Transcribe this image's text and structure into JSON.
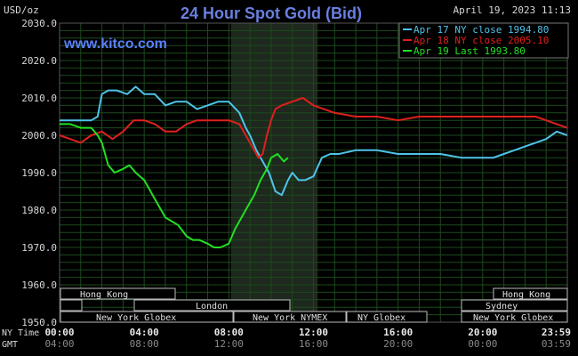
{
  "header": {
    "ylabel": "USD/oz",
    "title": "24 Hour Spot Gold (Bid)",
    "date": "April 19, 2023 11:13",
    "watermark": "www.kitco.com"
  },
  "legend": {
    "items": [
      {
        "label": "Apr 17 NY close 1994.80",
        "color": "#4fc3e8"
      },
      {
        "label": "Apr 18 NY close 2005.10",
        "color": "#e0201c"
      },
      {
        "label": "Apr 19 Last 1993.80",
        "color": "#22e022"
      }
    ]
  },
  "sessions": {
    "hong_kong_left": "Hong Kong",
    "london": "London",
    "new_york_globex_left": "New York Globex",
    "new_york_nymex": "New York NYMEX",
    "ny_globex": "NY Globex",
    "new_york_globex_right": "New York Globex",
    "sydney": "Sydney",
    "hong_kong_right": "Hong Kong"
  },
  "footer": {
    "ny_time_label": "NY Time",
    "gmt_label": "GMT"
  },
  "colors": {
    "background": "#000000",
    "grid": "#1c4a1c",
    "title": "#6a7fe0",
    "watermark": "#5a80ff",
    "axis_text": "#d8d8d8",
    "shade": "#1e281e",
    "apr17": "#4fc3e8",
    "apr18": "#e0201c",
    "apr19": "#22e022"
  },
  "chart_data": {
    "type": "line",
    "title": "24 Hour Spot Gold (Bid)",
    "ylabel": "USD/oz",
    "xlabel": "",
    "ylim": [
      1950,
      2030
    ],
    "xlim_hours": [
      0,
      24
    ],
    "y_ticks": [
      "1950.0",
      "1960.0",
      "1970.0",
      "1980.0",
      "1990.0",
      "2000.0",
      "2010.0",
      "2020.0",
      "2030.0"
    ],
    "x_ticks_ny": [
      "00:00",
      "04:00",
      "08:00",
      "12:00",
      "16:00",
      "20:00",
      "23:59"
    ],
    "x_ticks_gmt": [
      "04:00",
      "08:00",
      "12:00",
      "16:00",
      "20:00",
      "00:00",
      "03:59"
    ],
    "grid": true,
    "legend_position": "top-right",
    "series": [
      {
        "name": "Apr 17 NY close 1994.80",
        "x": [
          0,
          0.5,
          1,
          1.5,
          1.8,
          2.0,
          2.3,
          2.7,
          3.2,
          3.6,
          4.0,
          4.5,
          5.0,
          5.5,
          6.0,
          6.5,
          7.0,
          7.5,
          8.0,
          8.5,
          8.8,
          9.0,
          9.3,
          9.6,
          9.9,
          10.2,
          10.5,
          10.8,
          11.0,
          11.3,
          11.6,
          12.0,
          12.4,
          12.8,
          13.2,
          14.0,
          15.0,
          16.0,
          17.0,
          18.0,
          19.0,
          20.0,
          20.5,
          21.0,
          21.5,
          22.0,
          22.5,
          23.0,
          23.5,
          23.99
        ],
        "values": [
          2004,
          2004,
          2004,
          2004,
          2005,
          2011,
          2012,
          2012,
          2011,
          2013,
          2011,
          2011,
          2008,
          2009,
          2009,
          2007,
          2008,
          2009,
          2009,
          2006,
          2002,
          2000,
          1996,
          1993,
          1990,
          1985,
          1984,
          1988,
          1990,
          1988,
          1988,
          1989,
          1994,
          1995,
          1995,
          1996,
          1996,
          1995,
          1995,
          1995,
          1994,
          1994,
          1994,
          1995,
          1996,
          1997,
          1998,
          1999,
          2001,
          2000
        ]
      },
      {
        "name": "Apr 18 NY close 2005.10",
        "x": [
          0,
          0.5,
          1.0,
          1.5,
          2.0,
          2.5,
          3.0,
          3.5,
          4.0,
          4.5,
          5.0,
          5.5,
          6.0,
          6.5,
          7.0,
          7.5,
          8.0,
          8.5,
          8.8,
          9.0,
          9.2,
          9.4,
          9.6,
          9.8,
          10.0,
          10.2,
          10.5,
          11.0,
          11.5,
          12.0,
          13.0,
          14.0,
          15.0,
          16.0,
          17.0,
          18.0,
          19.0,
          20.0,
          21.0,
          22.0,
          22.5,
          23.0,
          23.5,
          23.99
        ],
        "values": [
          2000,
          1999,
          1998,
          2000,
          2001,
          1999,
          2001,
          2004,
          2004,
          2003,
          2001,
          2001,
          2003,
          2004,
          2004,
          2004,
          2004,
          2003,
          2000,
          1998,
          1996,
          1994,
          1995,
          2000,
          2004,
          2007,
          2008,
          2009,
          2010,
          2008,
          2006,
          2005,
          2005,
          2004,
          2005,
          2005,
          2005,
          2005,
          2005,
          2005,
          2005,
          2004,
          2003,
          2002
        ]
      },
      {
        "name": "Apr 19 Last 1993.80",
        "x": [
          0,
          0.5,
          1.0,
          1.5,
          1.8,
          2.0,
          2.3,
          2.6,
          3.0,
          3.3,
          3.6,
          4.0,
          4.3,
          4.6,
          5.0,
          5.3,
          5.6,
          6.0,
          6.3,
          6.6,
          7.0,
          7.3,
          7.6,
          8.0,
          8.3,
          8.6,
          8.9,
          9.2,
          9.5,
          9.8,
          10.0,
          10.3,
          10.6,
          10.8
        ],
        "values": [
          2003,
          2003,
          2002,
          2002,
          2000,
          1998,
          1992,
          1990,
          1991,
          1992,
          1990,
          1988,
          1985,
          1982,
          1978,
          1977,
          1976,
          1973,
          1972,
          1972,
          1971,
          1970,
          1970,
          1971,
          1975,
          1978,
          1981,
          1984,
          1988,
          1991,
          1994,
          1995,
          1993,
          1994
        ]
      }
    ]
  }
}
